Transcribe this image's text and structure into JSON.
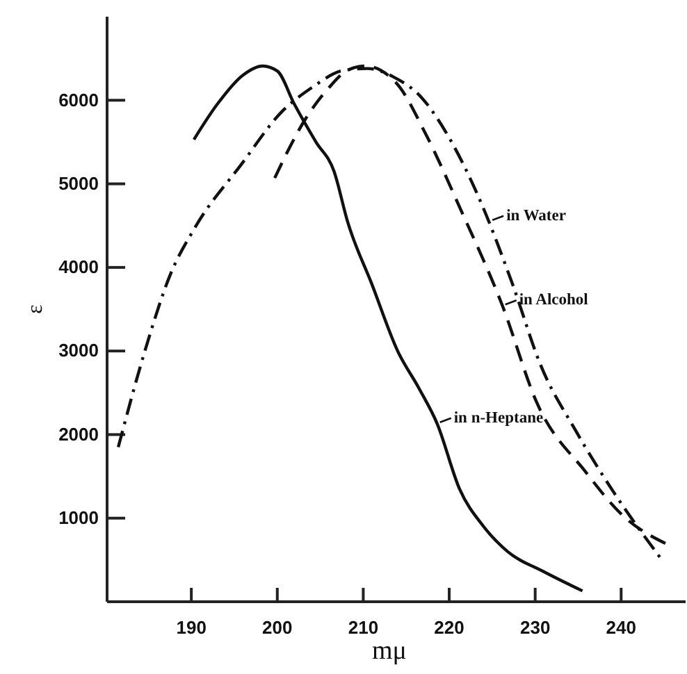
{
  "chart_data": {
    "type": "line",
    "xlabel": "mμ",
    "ylabel": "ε",
    "xlim": [
      180.2,
      247.5
    ],
    "ylim": [
      0,
      7000
    ],
    "xticks": [
      190,
      200,
      210,
      220,
      230,
      240
    ],
    "yticks": [
      1000,
      2000,
      3000,
      4000,
      5000,
      6000
    ],
    "grid": false,
    "marker": "none",
    "series": [
      {
        "color": "#111111",
        "line_style": "solid",
        "x": [
          190.3,
          193,
          196,
          198.3,
          200,
          202,
          204.5,
          206.6,
          208.2,
          211,
          214,
          216.5,
          218.6,
          221.2,
          224,
          226.8,
          231,
          235.5
        ],
        "values": [
          5530,
          5950,
          6300,
          6410,
          6350,
          5950,
          5500,
          5150,
          4540,
          3800,
          3000,
          2550,
          2130,
          1350,
          900,
          600,
          360,
          130
        ]
      },
      {
        "color": "#111111",
        "line_style": "dashdot",
        "x": [
          181.5,
          184.6,
          187.5,
          190.5,
          195.8,
          200.5,
          204,
          207.8,
          210.5,
          213.5,
          216.8,
          220,
          223.3,
          227.4,
          230.6,
          234.7,
          239.2,
          244.6
        ],
        "values": [
          1850,
          3000,
          3900,
          4490,
          5230,
          5860,
          6150,
          6360,
          6380,
          6280,
          6030,
          5550,
          4870,
          3790,
          2840,
          2050,
          1300,
          520
        ]
      },
      {
        "color": "#111111",
        "line_style": "dashed",
        "x": [
          199.7,
          203.3,
          206,
          208.2,
          210.2,
          213.9,
          217.2,
          221.3,
          226.2,
          230.2,
          235.9,
          240,
          245.7
        ],
        "values": [
          5070,
          5780,
          6150,
          6360,
          6410,
          6200,
          5610,
          4700,
          3540,
          2380,
          1550,
          1050,
          670
        ]
      }
    ],
    "annotations": [
      {
        "text": "in Water",
        "x": 224.7,
        "y": 4550
      },
      {
        "text": "in Alcohol",
        "x": 226.2,
        "y": 3540
      },
      {
        "text": "in n-Heptane",
        "x": 218.6,
        "y": 2130
      }
    ]
  }
}
